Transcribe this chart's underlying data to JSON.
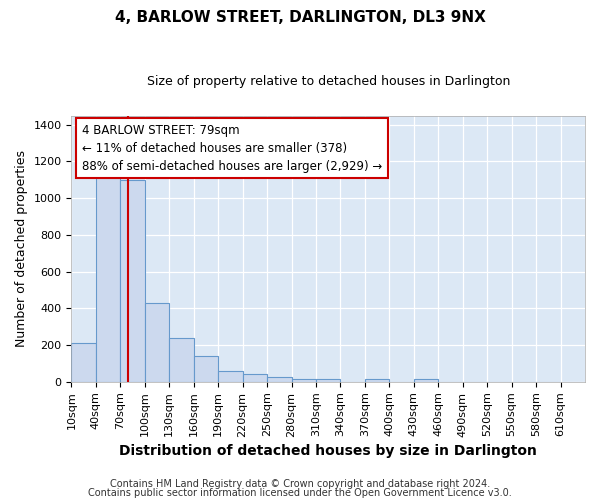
{
  "title": "4, BARLOW STREET, DARLINGTON, DL3 9NX",
  "subtitle": "Size of property relative to detached houses in Darlington",
  "xlabel": "Distribution of detached houses by size in Darlington",
  "ylabel": "Number of detached properties",
  "bin_labels": [
    "10sqm",
    "40sqm",
    "70sqm",
    "100sqm",
    "130sqm",
    "160sqm",
    "190sqm",
    "220sqm",
    "250sqm",
    "280sqm",
    "310sqm",
    "340sqm",
    "370sqm",
    "400sqm",
    "430sqm",
    "460sqm",
    "490sqm",
    "520sqm",
    "550sqm",
    "580sqm",
    "610sqm"
  ],
  "bin_edges": [
    10,
    40,
    70,
    100,
    130,
    160,
    190,
    220,
    250,
    280,
    310,
    340,
    370,
    400,
    430,
    460,
    490,
    520,
    550,
    580,
    610
  ],
  "bar_heights": [
    210,
    1120,
    1100,
    430,
    240,
    140,
    60,
    45,
    25,
    15,
    15,
    0,
    15,
    0,
    15,
    0,
    0,
    0,
    0,
    0
  ],
  "bar_color": "#ccd9ee",
  "bar_edge_color": "#6699cc",
  "vline_x": 79,
  "vline_color": "#cc0000",
  "ylim": [
    0,
    1450
  ],
  "yticks": [
    0,
    200,
    400,
    600,
    800,
    1000,
    1200,
    1400
  ],
  "annotation_text": "4 BARLOW STREET: 79sqm\n← 11% of detached houses are smaller (378)\n88% of semi-detached houses are larger (2,929) →",
  "annotation_box_facecolor": "#ffffff",
  "annotation_box_edgecolor": "#cc0000",
  "footer1": "Contains HM Land Registry data © Crown copyright and database right 2024.",
  "footer2": "Contains public sector information licensed under the Open Government Licence v3.0.",
  "fig_background": "#ffffff",
  "plot_background": "#dce8f5",
  "grid_color": "#ffffff",
  "title_fontsize": 11,
  "subtitle_fontsize": 9,
  "xlabel_fontsize": 10,
  "ylabel_fontsize": 9,
  "tick_fontsize": 8,
  "footer_fontsize": 7
}
